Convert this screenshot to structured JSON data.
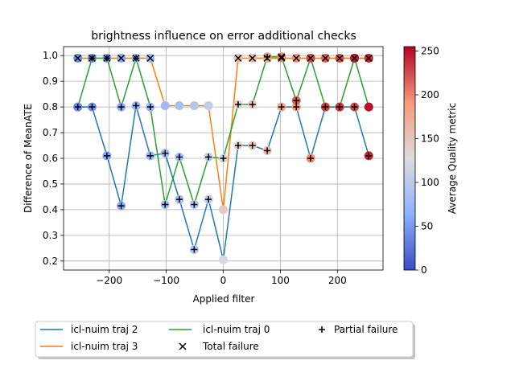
{
  "chart_data": {
    "type": "line",
    "title": "brightness influence on error additional checks",
    "xlabel": "Applied filter",
    "ylabel": "Difference of MeanATE",
    "xlim": [
      -280,
      280
    ],
    "ylim": [
      0.165,
      1.035
    ],
    "xticks": [
      -200,
      -100,
      0,
      100,
      200
    ],
    "yticks": [
      0.2,
      0.3,
      0.4,
      0.5,
      0.6,
      0.7,
      0.8,
      0.9,
      1.0
    ],
    "grid": true,
    "x": [
      -255,
      -230,
      -204,
      -179,
      -153,
      -128,
      -102,
      -77,
      -51,
      -26,
      0,
      26,
      51,
      77,
      102,
      128,
      153,
      179,
      204,
      230,
      255
    ],
    "series": [
      {
        "name": "icl-nuim traj 2",
        "color": "#1f77b4",
        "values": [
          0.8,
          0.8,
          0.61,
          0.415,
          0.805,
          0.61,
          0.62,
          0.44,
          0.245,
          0.44,
          0.205,
          0.65,
          0.65,
          0.63,
          0.8,
          0.8,
          0.6,
          0.8,
          0.8,
          0.8,
          0.61
        ],
        "quality": [
          40,
          45,
          55,
          60,
          70,
          75,
          80,
          85,
          95,
          105,
          120,
          135,
          145,
          160,
          175,
          185,
          195,
          205,
          215,
          225,
          240
        ],
        "partial_failure": [
          0,
          1,
          2,
          3,
          4,
          5,
          6,
          7,
          8,
          9,
          11,
          12,
          13,
          14,
          15,
          16,
          17,
          18,
          19,
          20
        ],
        "total_failure": []
      },
      {
        "name": "icl-nuim traj 3",
        "color": "#ff7f0e",
        "values": [
          0.99,
          0.99,
          0.99,
          0.99,
          0.99,
          0.99,
          0.805,
          0.805,
          0.805,
          0.805,
          0.4,
          0.99,
          0.99,
          0.99,
          0.99,
          0.99,
          0.99,
          0.99,
          0.99,
          0.99,
          0.99
        ],
        "quality": [
          40,
          45,
          55,
          60,
          70,
          75,
          80,
          85,
          95,
          105,
          145,
          155,
          160,
          175,
          185,
          195,
          205,
          215,
          225,
          240,
          240
        ],
        "partial_failure": [],
        "total_failure": [
          0,
          1,
          2,
          3,
          4,
          5,
          11,
          12,
          13,
          14,
          15,
          16,
          17,
          18,
          19,
          20
        ]
      },
      {
        "name": "icl-nuim traj 0",
        "color": "#2ca02c",
        "values": [
          0.8,
          0.99,
          0.99,
          0.8,
          0.99,
          0.8,
          0.42,
          0.605,
          0.42,
          0.605,
          0.6,
          0.81,
          0.81,
          0.995,
          0.995,
          0.825,
          0.99,
          0.8,
          0.8,
          0.99,
          0.8
        ],
        "quality": [
          40,
          45,
          55,
          60,
          70,
          75,
          80,
          85,
          95,
          105,
          120,
          135,
          145,
          175,
          200,
          215,
          225,
          230,
          235,
          245,
          250
        ],
        "partial_failure": [
          1,
          2,
          3,
          4,
          5,
          6,
          7,
          8,
          9,
          10,
          11,
          12,
          13,
          15
        ],
        "total_failure": [
          14
        ]
      }
    ],
    "colorbar": {
      "label": "Average Quality metric",
      "min": 0,
      "max": 255,
      "ticks": [
        0,
        50,
        100,
        150,
        200,
        250
      ],
      "colormap": "coolwarm"
    },
    "legend": {
      "placement": "bottom",
      "entries": [
        "icl-nuim traj 2",
        "icl-nuim traj 3",
        "icl-nuim traj 0",
        "Total failure",
        "Partial failure"
      ]
    }
  }
}
